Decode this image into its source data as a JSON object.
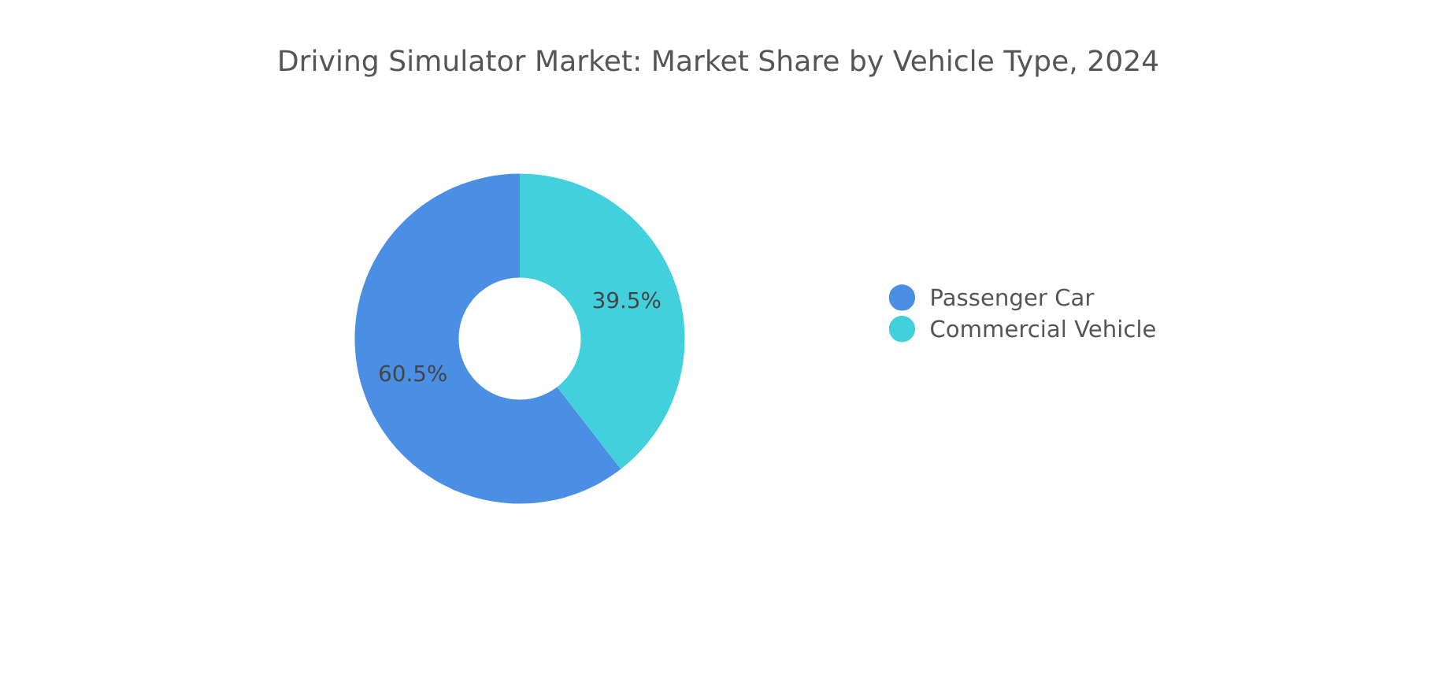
{
  "chart_data": {
    "type": "donut",
    "title": "Driving Simulator Market: Market Share by Vehicle Type, 2024",
    "categories": [
      "Passenger Car",
      "Commercial Vehicle"
    ],
    "values": [
      60.5,
      39.5
    ],
    "colors": [
      "#4a8fe3",
      "#41d0dc"
    ],
    "value_labels": [
      "60.5%",
      "39.5%"
    ],
    "legend": "right"
  }
}
